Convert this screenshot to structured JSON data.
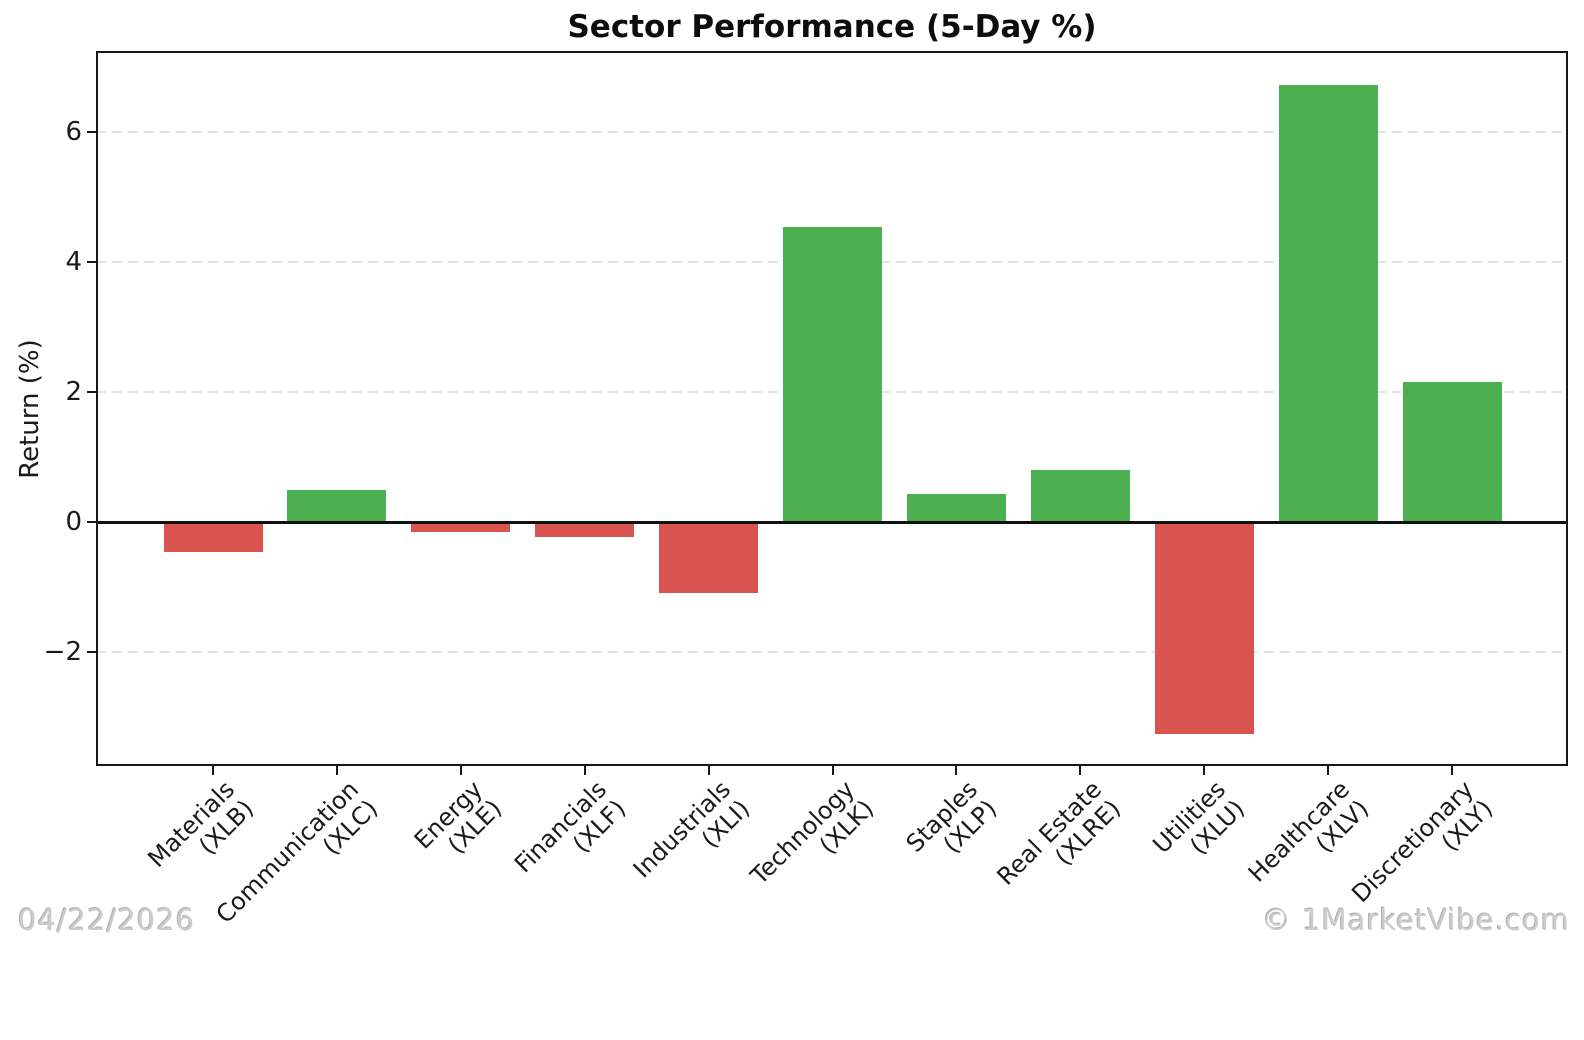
{
  "footer": {
    "date": "04/22/2026",
    "credit": "© 1MarketVibe.com"
  },
  "chart_data": {
    "type": "bar",
    "title": "Sector Performance (5-Day %)",
    "xlabel": "",
    "ylabel": "Return (%)",
    "categories": [
      "Materials\n(XLB)",
      "Communication\n(XLC)",
      "Energy\n(XLE)",
      "Financials\n(XLF)",
      "Industrials\n(XLI)",
      "Technology\n(XLK)",
      "Staples\n(XLP)",
      "Real Estate\n(XLRE)",
      "Utilities\n(XLU)",
      "Healthcare\n(XLV)",
      "Discretionary\n(XLY)"
    ],
    "values": [
      -0.45,
      0.5,
      -0.15,
      -0.22,
      -1.09,
      4.55,
      0.44,
      0.81,
      -3.26,
      6.73,
      2.16
    ],
    "bar_colors": {
      "positive": "#4caf50",
      "negative": "#d9534f"
    },
    "ylim": [
      -3.75,
      7.25
    ],
    "yticks": [
      {
        "value": 6,
        "label": "6"
      },
      {
        "value": 4,
        "label": "4"
      },
      {
        "value": 2,
        "label": "2"
      },
      {
        "value": 0,
        "label": "0"
      },
      {
        "value": -2,
        "label": "−2"
      }
    ],
    "grid": {
      "axis": "y",
      "style": "dashed",
      "color": "#e3e3e3"
    },
    "legend": "none",
    "zero_line": true
  }
}
